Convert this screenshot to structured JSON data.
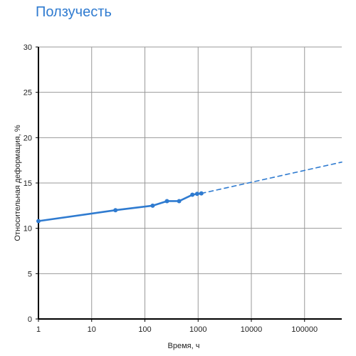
{
  "chart_data": {
    "type": "line",
    "title": "Ползучесть",
    "xlabel": "Время, ч",
    "ylabel": "Относительная деформация, %",
    "x_scale": "log",
    "xlim": [
      1,
      500000
    ],
    "ylim": [
      0,
      30
    ],
    "x_ticks": [
      1,
      10,
      100,
      1000,
      10000,
      100000
    ],
    "x_tick_labels": [
      "1",
      "10",
      "100",
      "1000",
      "10000",
      "100000"
    ],
    "y_ticks": [
      0,
      5,
      10,
      15,
      20,
      25,
      30
    ],
    "y_tick_labels": [
      "0",
      "5",
      "10",
      "15",
      "20",
      "25",
      "30"
    ],
    "grid": true,
    "legend": "none",
    "colors": {
      "series": "#2f7bd0",
      "grid": "#999999",
      "axis": "#000000"
    },
    "series": [
      {
        "style": "solid",
        "markers": true,
        "points": [
          {
            "x": 1,
            "y": 10.8
          },
          {
            "x": 28,
            "y": 12.0
          },
          {
            "x": 140,
            "y": 12.5
          },
          {
            "x": 260,
            "y": 13.0
          },
          {
            "x": 440,
            "y": 13.0
          },
          {
            "x": 780,
            "y": 13.7
          },
          {
            "x": 960,
            "y": 13.8
          },
          {
            "x": 1150,
            "y": 13.85
          }
        ]
      },
      {
        "style": "dashed",
        "markers": false,
        "points": [
          {
            "x": 1150,
            "y": 13.85
          },
          {
            "x": 500000,
            "y": 17.3
          }
        ]
      }
    ]
  }
}
